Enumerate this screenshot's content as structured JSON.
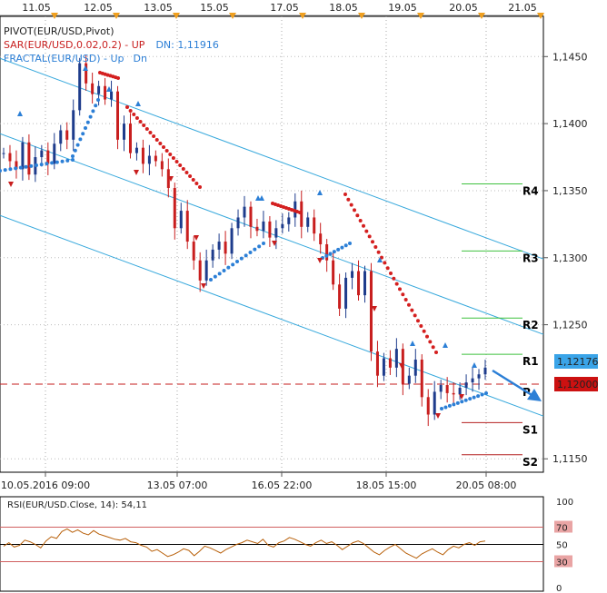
{
  "legend": {
    "pivot": "PIVOT(EUR/USD,Pivot)",
    "sar_name": "SAR(EUR/USD,0.02,0.2)",
    "sar_sep": " - ",
    "sar_up": "UP",
    "sar_dn": "DN: 1,11916",
    "fractal_name": "FRACTAL(EUR/USD)",
    "fractal_sep": " - ",
    "fractal_up": "Up",
    "fractal_dn": "Dn"
  },
  "colors": {
    "bull": "#1e3c8c",
    "bear": "#c81e1e",
    "sar": "#d41f1f",
    "fractal": "#2c7fd6",
    "channel": "#36a8dc",
    "pivot_level": "#3fc13f",
    "support_level": "#b42020",
    "dashed": "#c41e1e",
    "rsi": "#b8600a",
    "rsi_band": "#d06060",
    "price_box": "#3aa4e8",
    "pivot_box": "#cc1111",
    "event_marker": "#f0a020"
  },
  "top_dates": [
    "11.05",
    "12.05",
    "13.05",
    "15.05",
    "17.05",
    "18.05",
    "19.05",
    "20.05",
    "21.05"
  ],
  "bottom_dates": [
    "10.05.2016 09:00",
    "13.05 07:00",
    "16.05 22:00",
    "18.05 15:00",
    "20.05 08:00"
  ],
  "price_axis_labels": [
    "1,1450",
    "1,1400",
    "1,1350",
    "1,1300",
    "1,1250",
    "1,1150"
  ],
  "current_price": "1,12176",
  "pivot_price": "1,12000",
  "pivot_levels": [
    {
      "label": "R4",
      "value": 1.1355
    },
    {
      "label": "R3",
      "value": 1.1305
    },
    {
      "label": "R2",
      "value": 1.1255
    },
    {
      "label": "R1",
      "value": 1.1228
    },
    {
      "label": "P",
      "value": 1.1205
    },
    {
      "label": "S1",
      "value": 1.1177
    },
    {
      "label": "S2",
      "value": 1.1153
    }
  ],
  "rsi": {
    "legend": "RSI(EUR/USD.Close, 14): 54,11",
    "labels": [
      "100",
      "70",
      "50",
      "30",
      "0"
    ],
    "values": [
      48,
      52,
      47,
      49,
      55,
      53,
      50,
      46,
      54,
      59,
      57,
      65,
      68,
      64,
      67,
      63,
      61,
      66,
      62,
      60,
      58,
      56,
      55,
      57,
      53,
      52,
      49,
      47,
      42,
      44,
      40,
      36,
      38,
      41,
      45,
      43,
      37,
      42,
      48,
      46,
      43,
      40,
      44,
      47,
      50,
      52,
      55,
      53,
      51,
      56,
      49,
      47,
      52,
      54,
      58,
      56,
      53,
      50,
      48,
      52,
      55,
      51,
      53,
      49,
      44,
      48,
      52,
      54,
      51,
      46,
      41,
      38,
      43,
      47,
      50,
      45,
      40,
      37,
      34,
      39,
      42,
      45,
      41,
      38,
      44,
      48,
      46,
      50,
      52,
      49,
      53,
      54
    ]
  },
  "chart_data": {
    "type": "candlestick",
    "instrument": "EUR/USD",
    "x_labels": [
      "10.05.2016 09:00",
      "13.05 07:00",
      "16.05 22:00",
      "18.05 15:00",
      "20.05 08:00"
    ],
    "y_range": [
      1.114,
      1.148
    ],
    "close_path": [
      1.1378,
      1.1372,
      1.1366,
      1.1386,
      1.1362,
      1.1375,
      1.138,
      1.137,
      1.1385,
      1.1395,
      1.1388,
      1.141,
      1.1445,
      1.143,
      1.1422,
      1.1428,
      1.1418,
      1.1424,
      1.1388,
      1.14,
      1.1378,
      1.1382,
      1.137,
      1.1376,
      1.1372,
      1.1366,
      1.1352,
      1.1322,
      1.1335,
      1.1312,
      1.1298,
      1.1283,
      1.1298,
      1.1306,
      1.1312,
      1.1303,
      1.1322,
      1.133,
      1.1338,
      1.1323,
      1.132,
      1.1327,
      1.1315,
      1.1322,
      1.1325,
      1.133,
      1.1342,
      1.1323,
      1.133,
      1.1318,
      1.131,
      1.1298,
      1.128,
      1.1262,
      1.1285,
      1.129,
      1.1272,
      1.129,
      1.123,
      1.1212,
      1.1225,
      1.1218,
      1.1232,
      1.1206,
      1.1212,
      1.1224,
      1.1196,
      1.1183,
      1.12,
      1.1205,
      1.1199,
      1.1198,
      1.1203,
      1.1207,
      1.121,
      1.1213,
      1.1218
    ],
    "channel_lines": 3,
    "trend_arrow": "down"
  }
}
